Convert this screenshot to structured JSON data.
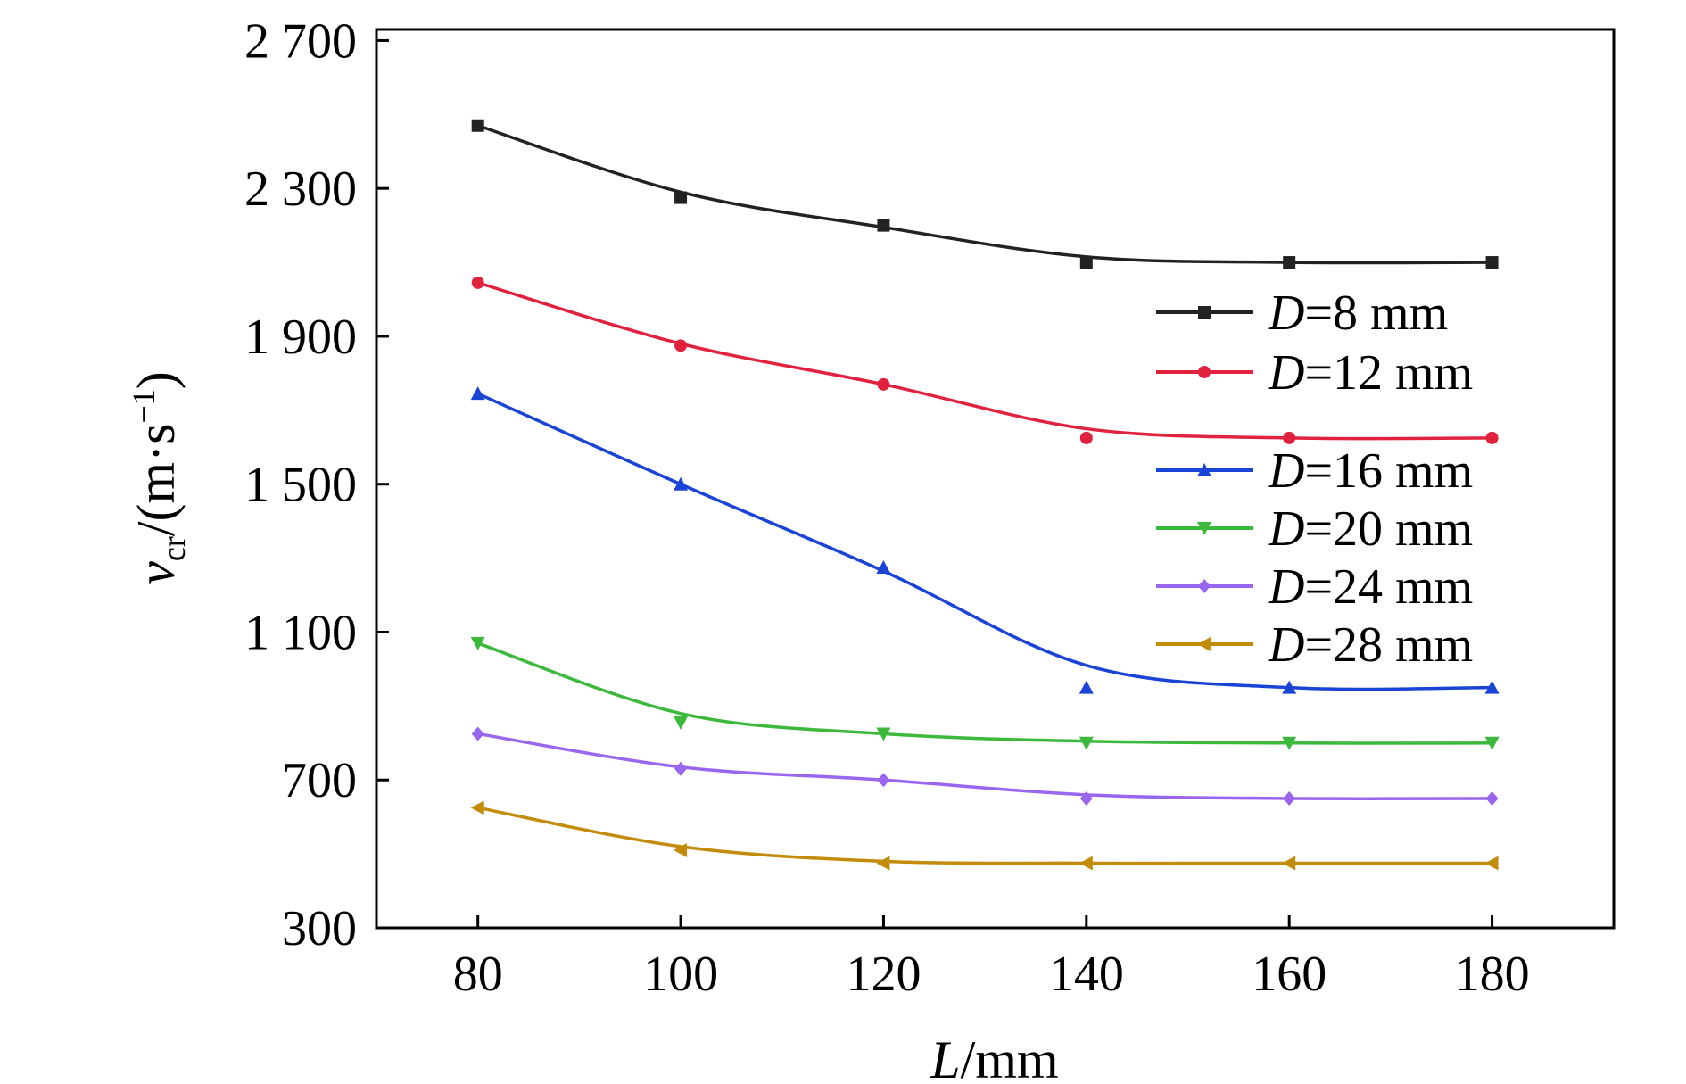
{
  "chart_data": {
    "type": "line",
    "title": "",
    "x": [
      80,
      100,
      120,
      140,
      160,
      180
    ],
    "xlim": [
      70,
      192
    ],
    "ylim": [
      300,
      2730
    ],
    "xticks": [
      80,
      100,
      120,
      140,
      160,
      180
    ],
    "xtick_labels": [
      "80",
      "100",
      "120",
      "140",
      "160",
      "180"
    ],
    "yticks": [
      300,
      700,
      1100,
      1500,
      1900,
      2300,
      2700
    ],
    "ytick_labels": [
      "300",
      "700",
      "1 100",
      "1 500",
      "1 900",
      "2 300",
      "2 700"
    ],
    "xlabel": {
      "var": "L",
      "unit": "/mm"
    },
    "ylabel": {
      "var": "v",
      "sub": "cr",
      "unit": "/(m·s",
      "sup": "−1",
      "close": ")"
    },
    "grid": false,
    "legend_position": "right",
    "series": [
      {
        "name": "D=8 mm",
        "name_var": "D",
        "name_rest": "=8 mm",
        "color": "#222222",
        "marker": "square",
        "values": [
          2470,
          2275,
          2200,
          2100,
          2100,
          2100
        ],
        "fit": [
          2470,
          2290,
          2195,
          2115,
          2100,
          2100
        ]
      },
      {
        "name": "D=12 mm",
        "name_var": "D",
        "name_rest": "=12 mm",
        "color": "#e0223f",
        "marker": "circle",
        "values": [
          2045,
          1875,
          1770,
          1625,
          1625,
          1625
        ],
        "fit": [
          2045,
          1880,
          1770,
          1650,
          1625,
          1625
        ]
      },
      {
        "name": "D=16 mm",
        "name_var": "D",
        "name_rest": "=16 mm",
        "color": "#1a44d6",
        "marker": "triangle-up",
        "values": [
          1745,
          1500,
          1275,
          950,
          950,
          950
        ],
        "fit": [
          1745,
          1500,
          1265,
          1010,
          950,
          950
        ]
      },
      {
        "name": "D=20 mm",
        "name_var": "D",
        "name_rest": "=20 mm",
        "color": "#3cb83c",
        "marker": "triangle-down",
        "values": [
          1070,
          855,
          825,
          800,
          800,
          800
        ],
        "fit": [
          1070,
          880,
          825,
          805,
          800,
          800
        ]
      },
      {
        "name": "D=24 mm",
        "name_var": "D",
        "name_rest": "=24 mm",
        "color": "#9966ee",
        "marker": "diamond",
        "values": [
          825,
          730,
          700,
          650,
          650,
          650
        ],
        "fit": [
          825,
          735,
          700,
          660,
          650,
          650
        ]
      },
      {
        "name": "D=28 mm",
        "name_var": "D",
        "name_rest": "=28 mm",
        "color": "#c28b0a",
        "marker": "triangle-left",
        "values": [
          625,
          510,
          475,
          475,
          475,
          475
        ],
        "fit": [
          625,
          520,
          480,
          475,
          475,
          475
        ]
      }
    ]
  }
}
